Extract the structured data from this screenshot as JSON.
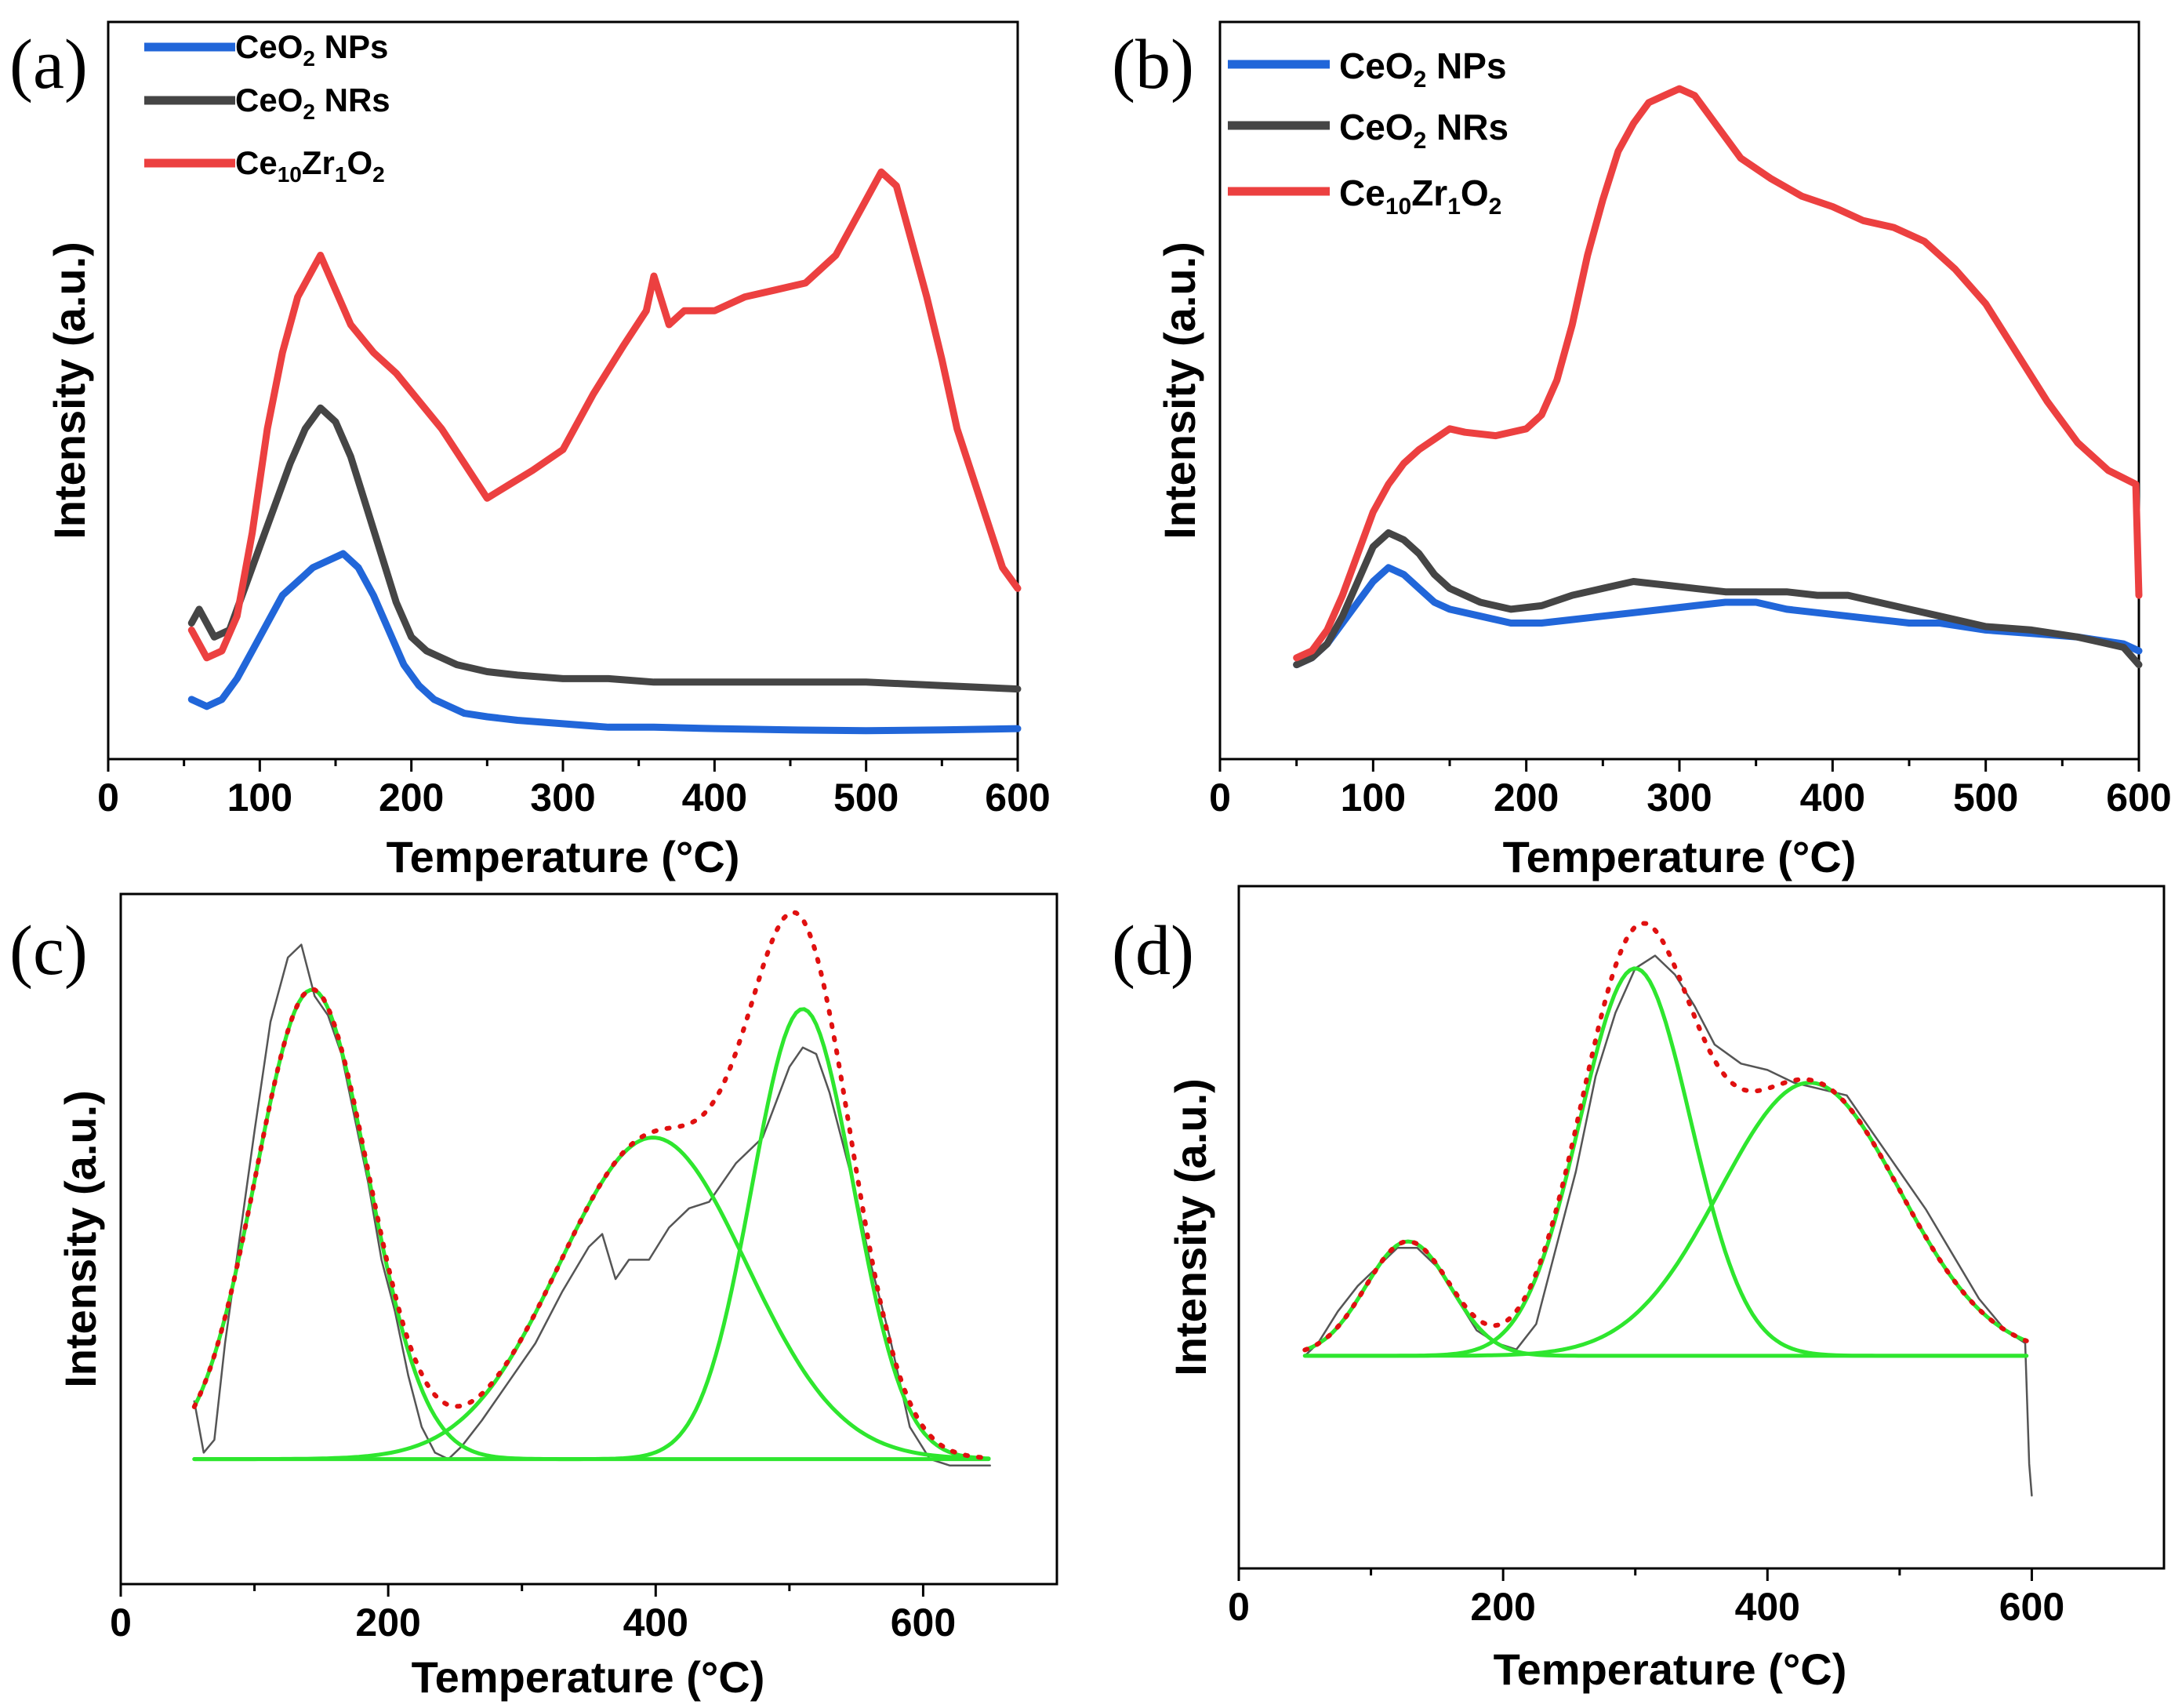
{
  "chart_data": [
    {
      "id": "a",
      "panel_label": "(a)",
      "type": "line",
      "title": "",
      "xlabel": "Temperature (°C)",
      "ylabel": "Intensity (a.u.)",
      "xlim": [
        0,
        600
      ],
      "ylim": [
        0,
        100
      ],
      "xticks": [
        0,
        100,
        200,
        300,
        400,
        500,
        600
      ],
      "grid": false,
      "legend_position": "top-left",
      "series": [
        {
          "name": "CeO₂ NPs",
          "legend_base": "CeO",
          "legend_sub": "2",
          "legend_tail": " NPs",
          "color": "#2166d9",
          "x": [
            55,
            65,
            75,
            85,
            95,
            105,
            115,
            125,
            135,
            145,
            155,
            165,
            175,
            185,
            195,
            205,
            215,
            225,
            235,
            250,
            270,
            300,
            330,
            360,
            400,
            450,
            500,
            550,
            600
          ],
          "y": [
            6,
            5,
            6,
            9,
            13,
            17,
            21,
            23,
            25,
            26,
            27,
            25,
            21,
            16,
            11,
            8,
            6,
            5,
            4,
            3.5,
            3,
            2.5,
            2,
            2,
            1.8,
            1.6,
            1.5,
            1.6,
            1.8
          ]
        },
        {
          "name": "CeO₂ NRs",
          "legend_base": "CeO",
          "legend_sub": "2",
          "legend_tail": " NRs",
          "color": "#454545",
          "x": [
            55,
            60,
            70,
            80,
            90,
            100,
            110,
            120,
            130,
            140,
            150,
            160,
            170,
            180,
            190,
            200,
            210,
            220,
            230,
            250,
            270,
            300,
            330,
            360,
            400,
            450,
            500,
            550,
            600
          ],
          "y": [
            17,
            19,
            15,
            16,
            22,
            28,
            34,
            40,
            45,
            48,
            46,
            41,
            34,
            27,
            20,
            15,
            13,
            12,
            11,
            10,
            9.5,
            9,
            9,
            8.5,
            8.5,
            8.5,
            8.5,
            8,
            7.5
          ]
        },
        {
          "name": "Ce₁₀Zr₁O₂",
          "legend_base": "Ce",
          "legend_sub": "10",
          "legend_mid": "Zr",
          "legend_sub2": "1",
          "legend_mid2": "O",
          "legend_sub3": "2",
          "color": "#ec4040",
          "x": [
            55,
            65,
            75,
            85,
            95,
            105,
            115,
            125,
            135,
            140,
            150,
            160,
            175,
            190,
            205,
            220,
            235,
            250,
            265,
            280,
            300,
            320,
            340,
            355,
            360,
            370,
            380,
            400,
            420,
            440,
            460,
            480,
            500,
            510,
            520,
            530,
            540,
            550,
            560,
            575,
            590,
            600
          ],
          "y": [
            16,
            12,
            13,
            18,
            30,
            45,
            56,
            64,
            68,
            70,
            65,
            60,
            56,
            53,
            49,
            45,
            40,
            35,
            37,
            39,
            42,
            50,
            57,
            62,
            67,
            60,
            62,
            62,
            64,
            65,
            66,
            70,
            78,
            82,
            80,
            72,
            64,
            55,
            45,
            35,
            25,
            22
          ]
        }
      ]
    },
    {
      "id": "b",
      "panel_label": "(b)",
      "type": "line",
      "title": "",
      "xlabel": "Temperature (°C)",
      "ylabel": "Intensity (a.u.)",
      "xlim": [
        0,
        600
      ],
      "ylim": [
        0,
        100
      ],
      "xticks": [
        0,
        100,
        200,
        300,
        400,
        500,
        600
      ],
      "grid": false,
      "legend_position": "top-left",
      "series": [
        {
          "name": "CeO₂ NPs",
          "legend_base": "CeO",
          "legend_sub": "2",
          "legend_tail": " NPs",
          "color": "#2166d9",
          "x": [
            50,
            60,
            70,
            80,
            90,
            100,
            110,
            120,
            130,
            140,
            150,
            170,
            190,
            210,
            230,
            250,
            270,
            290,
            310,
            330,
            350,
            370,
            390,
            410,
            430,
            450,
            470,
            500,
            530,
            560,
            590,
            600
          ],
          "y": [
            11,
            12,
            14,
            17,
            20,
            23,
            25,
            24,
            22,
            20,
            19,
            18,
            17,
            17,
            17.5,
            18,
            18.5,
            19,
            19.5,
            20,
            20,
            19,
            18.5,
            18,
            17.5,
            17,
            17,
            16,
            15.5,
            15,
            14,
            13
          ]
        },
        {
          "name": "CeO₂ NRs",
          "legend_base": "CeO",
          "legend_sub": "2",
          "legend_tail": " NRs",
          "color": "#454545",
          "x": [
            50,
            60,
            70,
            80,
            90,
            100,
            110,
            120,
            130,
            140,
            150,
            170,
            190,
            210,
            230,
            250,
            270,
            290,
            310,
            330,
            350,
            370,
            390,
            410,
            430,
            450,
            470,
            500,
            530,
            560,
            590,
            600
          ],
          "y": [
            11,
            12,
            14,
            18,
            23,
            28,
            30,
            29,
            27,
            24,
            22,
            20,
            19,
            19.5,
            21,
            22,
            23,
            22.5,
            22,
            21.5,
            21.5,
            21.5,
            21,
            21,
            20,
            19,
            18,
            16.5,
            16,
            15,
            13.5,
            11
          ]
        },
        {
          "name": "Ce₁₀Zr₁O₂",
          "legend_base": "Ce",
          "legend_sub": "10",
          "legend_mid": "Zr",
          "legend_sub2": "1",
          "legend_mid2": "O",
          "legend_sub3": "2",
          "color": "#ec4040",
          "x": [
            50,
            60,
            70,
            80,
            90,
            100,
            110,
            120,
            130,
            140,
            150,
            160,
            180,
            200,
            210,
            220,
            230,
            240,
            250,
            260,
            270,
            280,
            290,
            300,
            310,
            320,
            340,
            360,
            380,
            400,
            420,
            440,
            460,
            480,
            500,
            520,
            540,
            560,
            580,
            598,
            600
          ],
          "y": [
            12,
            13,
            16,
            21,
            27,
            33,
            37,
            40,
            42,
            43.5,
            45,
            44.5,
            44,
            45,
            47,
            52,
            60,
            70,
            78,
            85,
            89,
            92,
            93,
            94,
            93,
            90,
            84,
            81,
            78.5,
            77,
            75,
            74,
            72,
            68,
            63,
            56,
            49,
            43,
            39,
            37,
            21
          ]
        }
      ]
    },
    {
      "id": "c",
      "panel_label": "(c)",
      "type": "line",
      "title": "",
      "xlabel": "Temperature (°C)",
      "ylabel": "Intensity (a.u.)",
      "xlim": [
        0,
        700
      ],
      "ylim": [
        0,
        100
      ],
      "xticks": [
        0,
        200,
        400,
        600
      ],
      "grid": false,
      "legend_position": "none",
      "baseline": 17,
      "x_range": [
        55,
        650
      ],
      "fit_components": [
        {
          "name": "peak 1",
          "center": 143,
          "amplitude": 73,
          "sigma": 42
        },
        {
          "name": "peak 2",
          "center": 398,
          "amplitude": 50,
          "sigma": 70
        },
        {
          "name": "peak 3",
          "center": 510,
          "amplitude": 70,
          "sigma": 38
        }
      ],
      "experimental": {
        "x": [
          55,
          62,
          70,
          78,
          88,
          100,
          112,
          125,
          135,
          145,
          155,
          165,
          175,
          185,
          195,
          205,
          215,
          225,
          235,
          245,
          255,
          270,
          290,
          310,
          330,
          350,
          360,
          370,
          380,
          395,
          410,
          425,
          440,
          460,
          480,
          500,
          510,
          520,
          530,
          540,
          550,
          560,
          575,
          590,
          605,
          620,
          635,
          650
        ],
        "y": [
          26,
          18,
          20,
          35,
          50,
          68,
          85,
          95,
          97,
          89,
          86,
          80,
          70,
          60,
          48,
          40,
          30,
          22,
          18,
          17,
          19,
          23,
          29,
          35,
          43,
          50,
          52,
          45,
          48,
          48,
          53,
          56,
          57,
          63,
          67,
          78,
          81,
          80,
          74,
          66,
          58,
          48,
          36,
          22,
          17,
          16,
          16,
          16
        ]
      },
      "fit_color": "#e01010",
      "component_color": "#2ee62e"
    },
    {
      "id": "d",
      "panel_label": "(d)",
      "type": "line",
      "title": "",
      "xlabel": "Temperature (°C)",
      "ylabel": "Intensity (a.u.)",
      "xlim": [
        0,
        700
      ],
      "ylim": [
        0,
        100
      ],
      "xticks": [
        0,
        200,
        400,
        600
      ],
      "grid": false,
      "legend_position": "none",
      "baseline": 31,
      "x_range": [
        50,
        598
      ],
      "fit_components": [
        {
          "name": "peak 1",
          "center": 128,
          "amplitude": 18,
          "sigma": 32
        },
        {
          "name": "peak 2",
          "center": 300,
          "amplitude": 61,
          "sigma": 42
        },
        {
          "name": "peak 3",
          "center": 432,
          "amplitude": 43,
          "sigma": 68
        }
      ],
      "experimental": {
        "x": [
          50,
          60,
          75,
          90,
          105,
          120,
          135,
          150,
          165,
          180,
          195,
          210,
          225,
          240,
          255,
          270,
          285,
          300,
          315,
          330,
          345,
          360,
          380,
          400,
          420,
          440,
          460,
          480,
          500,
          520,
          540,
          560,
          580,
          595,
          598,
          600
        ],
        "y": [
          31,
          33,
          38,
          42,
          45,
          48,
          48,
          45,
          40,
          35,
          33,
          32,
          36,
          48,
          60,
          75,
          85,
          92,
          94,
          91,
          86,
          80,
          77,
          76,
          74,
          73,
          72,
          66,
          60,
          54,
          47,
          40,
          35,
          33,
          14,
          9
        ]
      },
      "fit_color": "#e01010",
      "component_color": "#2ee62e"
    }
  ]
}
